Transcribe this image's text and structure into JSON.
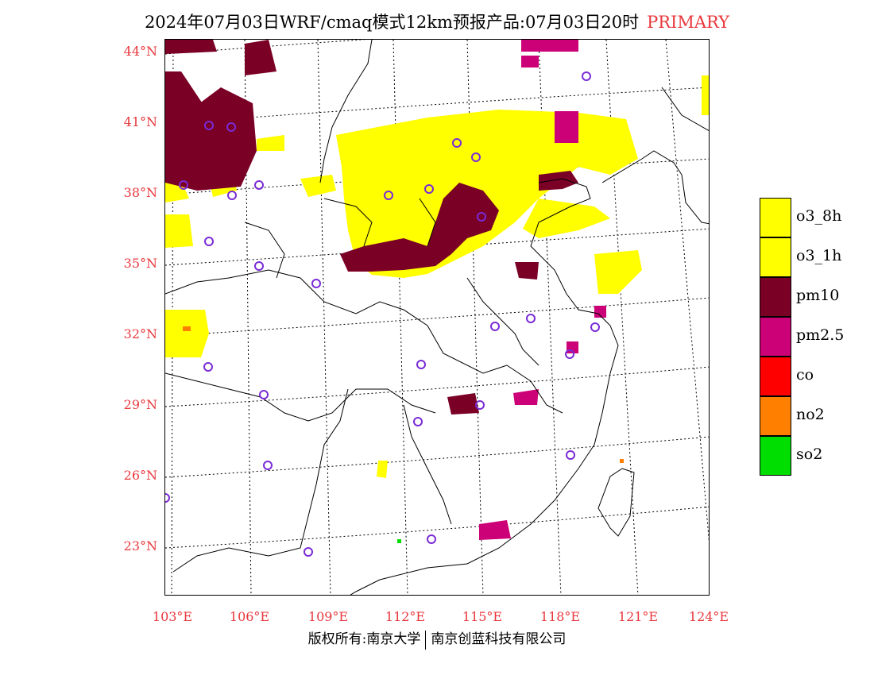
{
  "title": {
    "main": "2024年07月03日WRF/cmaq模式12km预报产品:07月03日20时",
    "tag": "PRIMARY"
  },
  "lat_labels": [
    "44°N",
    "41°N",
    "38°N",
    "35°N",
    "32°N",
    "29°N",
    "26°N",
    "23°N"
  ],
  "lon_labels": [
    "103°E",
    "106°E",
    "109°E",
    "112°E",
    "115°E",
    "118°E",
    "121°E",
    "124°E"
  ],
  "legend": [
    {
      "label": "o3_8h",
      "color": "#ffff00"
    },
    {
      "label": "o3_1h",
      "color": "#ffff00"
    },
    {
      "label": "pm10",
      "color": "#7a0026"
    },
    {
      "label": "pm2.5",
      "color": "#cc0077"
    },
    {
      "label": "co",
      "color": "#ff0000"
    },
    {
      "label": "no2",
      "color": "#ff7f00"
    },
    {
      "label": "so2",
      "color": "#00dd00"
    }
  ],
  "footer": {
    "left": "版权所有:南京大学",
    "right": "南京创蓝科技有限公司"
  },
  "map": {
    "projection": "lambert",
    "region": "China (east/central)",
    "station_marker_color": "#7a2bd6",
    "pollutant_field": "PRIMARY"
  }
}
